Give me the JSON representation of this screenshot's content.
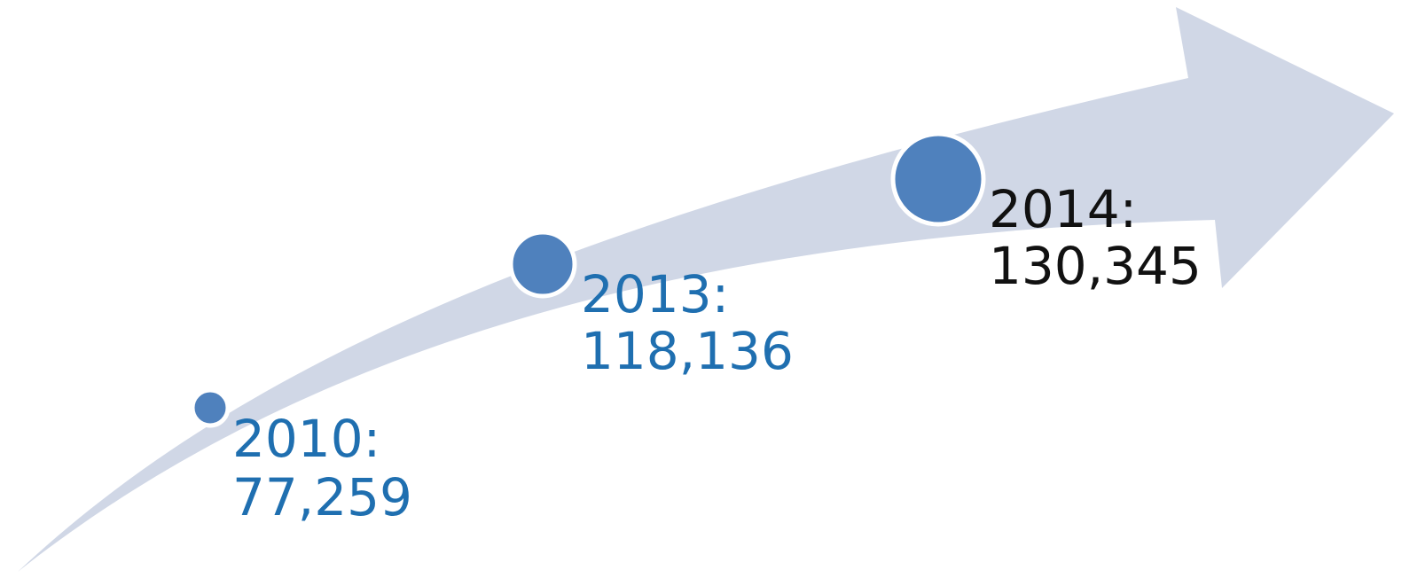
{
  "colors": {
    "arrow_fill": "#D0D7E6",
    "milestone_fill": "#4F81BD",
    "milestone_stroke": "#FFFFFF",
    "label_blue": "#1F6FB0",
    "label_black": "#111111"
  },
  "milestones": [
    {
      "year_label": "2010:",
      "value_label": "77,259",
      "value": 77259,
      "label_color": "label_blue"
    },
    {
      "year_label": "2013:",
      "value_label": "118,136",
      "value": 118136,
      "label_color": "label_blue"
    },
    {
      "year_label": "2014:",
      "value_label": "130,345",
      "value": 130345,
      "label_color": "label_black"
    }
  ]
}
